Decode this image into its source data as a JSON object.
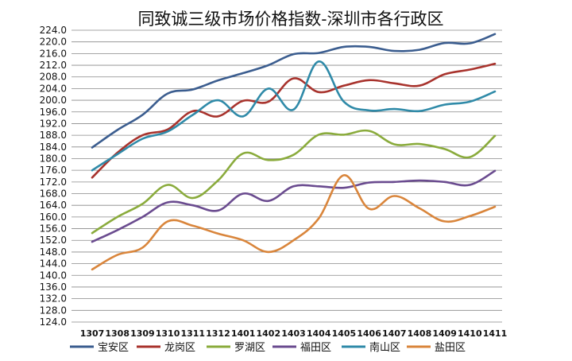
{
  "chart_data": {
    "type": "line",
    "title": "同致诚三级市场价格指数-深圳市各行政区",
    "x": [
      "1307",
      "1308",
      "1309",
      "1310",
      "1311",
      "1312",
      "1401",
      "1402",
      "1403",
      "1404",
      "1405",
      "1406",
      "1407",
      "1408",
      "1409",
      "1410",
      "1411"
    ],
    "y_ticks": [
      "124.0",
      "128.0",
      "132.0",
      "136.0",
      "140.0",
      "144.0",
      "148.0",
      "152.0",
      "156.0",
      "160.0",
      "164.0",
      "168.0",
      "172.0",
      "176.0",
      "180.0",
      "184.0",
      "188.0",
      "192.0",
      "196.0",
      "200.0",
      "204.0",
      "208.0",
      "212.0",
      "216.0",
      "220.0",
      "224.0"
    ],
    "ylim": [
      124,
      224
    ],
    "grid": true,
    "legend": "bottom",
    "series": [
      {
        "name": "宝安区",
        "color": "#3b5d8f",
        "values": [
          183.8,
          189.8,
          195.0,
          202.3,
          203.7,
          206.8,
          209.3,
          212.0,
          215.8,
          216.2,
          218.3,
          218.3,
          216.9,
          217.3,
          219.6,
          219.5,
          222.7
        ]
      },
      {
        "name": "龙岗区",
        "color": "#a8332d",
        "values": [
          173.5,
          182.0,
          188.0,
          190.0,
          196.3,
          194.5,
          199.8,
          199.5,
          207.5,
          202.8,
          205.0,
          206.9,
          205.8,
          205.0,
          208.9,
          210.5,
          212.5
        ]
      },
      {
        "name": "罗湖区",
        "color": "#8aab3c",
        "values": [
          154.5,
          160.0,
          164.5,
          171.0,
          166.5,
          172.5,
          181.8,
          179.5,
          181.3,
          188.2,
          188.2,
          189.5,
          184.9,
          185.0,
          183.3,
          180.5,
          187.8
        ]
      },
      {
        "name": "福田区",
        "color": "#6a4b8f",
        "values": [
          151.5,
          155.5,
          160.0,
          165.0,
          164.0,
          162.2,
          168.0,
          165.5,
          170.5,
          170.5,
          170.0,
          171.8,
          172.0,
          172.5,
          172.0,
          171.0,
          175.8
        ]
      },
      {
        "name": "南山区",
        "color": "#2f8aa8",
        "values": [
          176.0,
          181.5,
          186.8,
          189.3,
          195.0,
          200.0,
          194.5,
          204.0,
          196.8,
          213.3,
          199.5,
          196.5,
          197.0,
          196.3,
          198.5,
          199.5,
          203.0
        ]
      },
      {
        "name": "盐田区",
        "color": "#d9853b",
        "values": [
          142.0,
          147.0,
          149.5,
          158.5,
          157.0,
          154.3,
          152.0,
          148.0,
          152.0,
          159.5,
          174.3,
          162.8,
          167.2,
          163.0,
          158.5,
          160.3,
          163.5
        ]
      }
    ]
  }
}
